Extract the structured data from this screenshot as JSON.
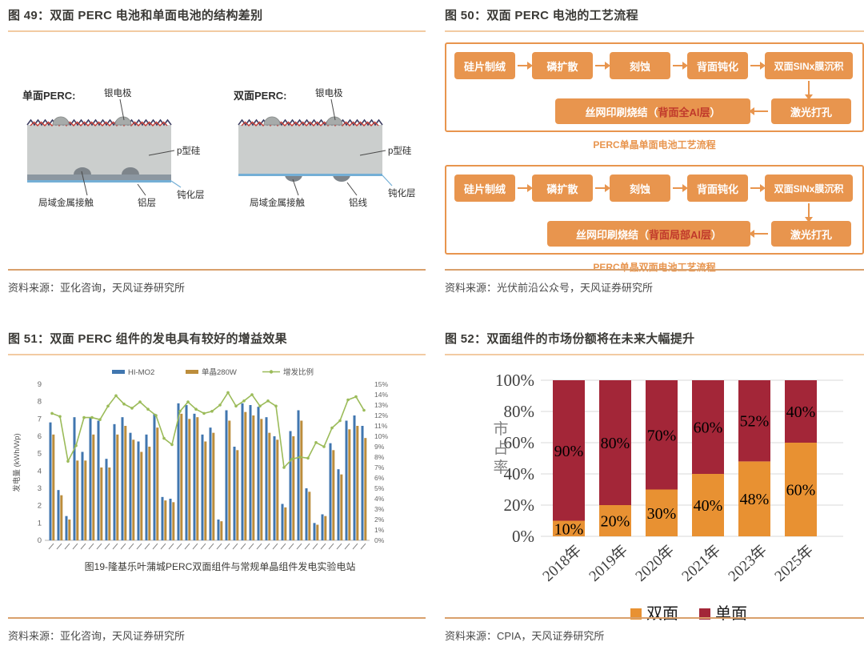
{
  "colors": {
    "accent_orange": "#E8954E",
    "title_underline": "#F2CBA2",
    "source_divider": "#D9A06B",
    "title_text": "#3B3A36",
    "source_text": "#4A4A4A",
    "flow_red_text": "#C0392B",
    "bar_blue": "#4076AF",
    "bar_tan": "#BC8D3C",
    "line_green": "#9BBB59",
    "bifacial_orange": "#E89132",
    "monofacial_red": "#A32638"
  },
  "figures": {
    "fig49": {
      "title": "图 49：双面 PERC 电池和单面电池的结构差别",
      "source": "资料来源：亚化咨询，天风证券研究所",
      "left": {
        "label": "单面PERC:",
        "silver": "银电极",
        "silicon": "p型硅",
        "passivation": "钝化层",
        "aluminum": "铝层",
        "contact": "局域金属接触"
      },
      "right": {
        "label": "双面PERC:",
        "silver": "银电极",
        "silicon": "p型硅",
        "passivation": "钝化层",
        "aluminum": "铝线",
        "contact": "局域金属接触"
      }
    },
    "fig50": {
      "title": "图 50：双面 PERC 电池的工艺流程",
      "source": "资料来源：光伏前沿公众号，天风证券研究所",
      "flows": [
        {
          "steps": [
            "硅片制绒",
            "磷扩散",
            "刻蚀",
            "背面钝化",
            "双面SINx膜沉积"
          ],
          "laser": "激光打孔",
          "print_prefix": "丝网印刷烧结（",
          "print_highlight": "背面全Al层",
          "print_suffix": "）",
          "caption": "PERC单晶单面电池工艺流程"
        },
        {
          "steps": [
            "硅片制绒",
            "磷扩散",
            "刻蚀",
            "背面钝化",
            "双面SINx膜沉积"
          ],
          "laser": "激光打孔",
          "print_prefix": "丝网印刷烧结（",
          "print_highlight": "背面局部Al层",
          "print_suffix": "）",
          "caption": "PERC单晶双面电池工艺流程"
        }
      ]
    },
    "fig51": {
      "title": "图 51：双面 PERC 组件的发电具有较好的增益效果",
      "source": "资料来源：亚化咨询，天风证券研究所"
    },
    "fig52": {
      "title": "图 52：双面组件的市场份额将在未来大幅提升",
      "source": "资料来源：CPIA，天风证券研究所"
    }
  },
  "chart_data": [
    {
      "figure": "图 51",
      "type": "bar",
      "subtype": "grouped-bars-with-line",
      "title": "图19-隆基乐叶蒲城PERC双面组件与常规单晶组件发电实验电站",
      "ylabel": "发电量 (kWh/Wp)",
      "ylim": [
        0,
        9
      ],
      "y_ticks": [
        0,
        1,
        2,
        3,
        4,
        5,
        6,
        7,
        8,
        9
      ],
      "y2lim_pct": [
        0,
        15
      ],
      "y2_ticks": [
        "0%",
        "1%",
        "2%",
        "3%",
        "4%",
        "5%",
        "6%",
        "7%",
        "8%",
        "9%",
        "10%",
        "11%",
        "12%",
        "13%",
        "14%",
        "15%"
      ],
      "x_note": "约40组逐日观测，横轴日期刻度极小（图中不可辨认）",
      "grid": false,
      "legend_position": "top",
      "series": [
        {
          "name": "HI-MO2",
          "type": "bar",
          "axis": "left",
          "values": [
            6.8,
            2.9,
            1.4,
            7.1,
            5.1,
            7.1,
            6.9,
            4.7,
            6.7,
            7.1,
            6.2,
            5.7,
            6.1,
            7.3,
            2.5,
            2.4,
            7.9,
            7.8,
            7.3,
            6.1,
            6.5,
            1.2,
            7.5,
            5.4,
            7.9,
            7.8,
            7.7,
            7.1,
            6.0,
            2.1,
            6.3,
            7.5,
            3.0,
            1.0,
            1.5,
            5.6,
            4.1,
            6.9,
            7.2,
            6.6
          ]
        },
        {
          "name": "单晶280W",
          "type": "bar",
          "axis": "left",
          "values": [
            6.1,
            2.6,
            1.2,
            4.6,
            4.6,
            6.1,
            4.2,
            4.2,
            6.1,
            6.6,
            5.8,
            5.1,
            5.4,
            6.5,
            2.3,
            2.2,
            7.3,
            7.0,
            7.1,
            5.7,
            6.2,
            1.1,
            6.9,
            5.2,
            7.4,
            7.2,
            7.0,
            6.2,
            5.8,
            1.9,
            6.0,
            6.9,
            2.8,
            0.9,
            1.4,
            5.2,
            3.8,
            6.4,
            6.6,
            5.9
          ]
        },
        {
          "name": "增发比例",
          "type": "line",
          "axis": "right",
          "unit": "%",
          "values": [
            12.2,
            11.9,
            7.6,
            9.1,
            11.8,
            11.8,
            11.6,
            12.9,
            13.9,
            13.1,
            12.7,
            13.3,
            12.6,
            12.0,
            9.8,
            9.2,
            12.4,
            13.3,
            12.6,
            12.2,
            12.4,
            13.0,
            14.2,
            12.9,
            13.4,
            14.0,
            12.9,
            13.4,
            12.9,
            7.0,
            7.8,
            8.0,
            7.9,
            9.4,
            9.0,
            10.8,
            11.5,
            13.5,
            13.8,
            12.5
          ]
        }
      ]
    },
    {
      "figure": "图 52",
      "type": "bar",
      "subtype": "stacked-100pct",
      "categories": [
        "2018年",
        "2019年",
        "2020年",
        "2021年",
        "2023年",
        "2025年"
      ],
      "series": [
        {
          "name": "双面",
          "values": [
            10,
            20,
            30,
            40,
            48,
            60
          ]
        },
        {
          "name": "单面",
          "values": [
            90,
            80,
            70,
            60,
            52,
            40
          ]
        }
      ],
      "unit": "%",
      "ylabel": "市占率",
      "ylim": [
        0,
        100
      ],
      "y_ticks": [
        "0%",
        "20%",
        "40%",
        "60%",
        "80%",
        "100%"
      ],
      "bar_labels": true,
      "grid": true,
      "legend_position": "bottom"
    }
  ]
}
